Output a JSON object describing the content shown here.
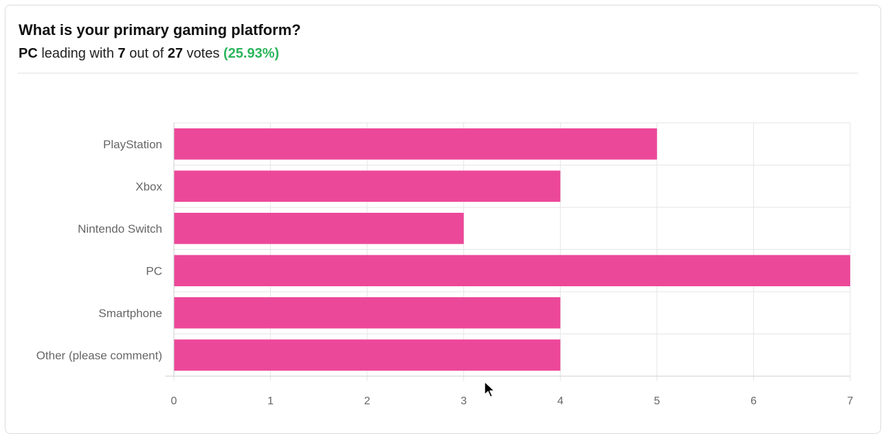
{
  "header": {
    "title": "What is your primary gaming platform?",
    "leader": "PC",
    "leading_text": "leading with",
    "leader_votes": "7",
    "out_of_text": "out of",
    "total_votes": "27",
    "votes_text": "votes",
    "percentage": "(25.93%)"
  },
  "colors": {
    "bar": "#ec4899",
    "accent_green": "#2bb55c"
  },
  "chart_data": {
    "type": "bar",
    "orientation": "horizontal",
    "categories": [
      "PlayStation",
      "Xbox",
      "Nintendo Switch",
      "PC",
      "Smartphone",
      "Other (please comment)"
    ],
    "values": [
      5,
      4,
      3,
      7,
      4,
      4
    ],
    "xlim": [
      0,
      7
    ],
    "xticks": [
      "0",
      "1",
      "2",
      "3",
      "4",
      "5",
      "6",
      "7"
    ],
    "grid": true,
    "legend": "none"
  }
}
